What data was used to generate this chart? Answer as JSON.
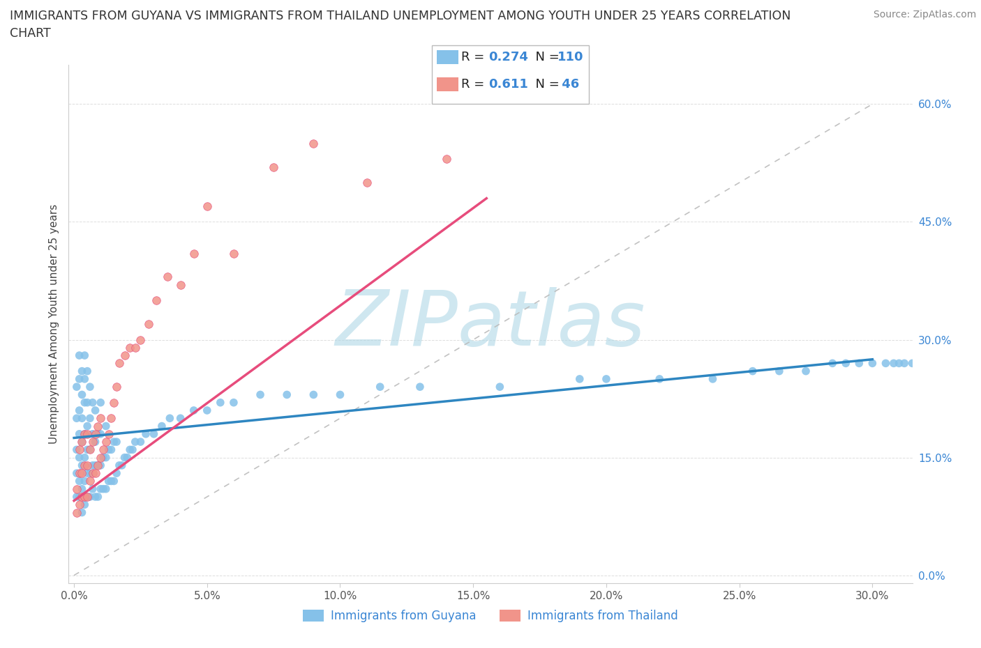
{
  "title_line1": "IMMIGRANTS FROM GUYANA VS IMMIGRANTS FROM THAILAND UNEMPLOYMENT AMONG YOUTH UNDER 25 YEARS CORRELATION",
  "title_line2": "CHART",
  "source": "Source: ZipAtlas.com",
  "ylabel": "Unemployment Among Youth under 25 years",
  "xlim": [
    -0.002,
    0.315
  ],
  "ylim": [
    -0.01,
    0.65
  ],
  "xticks": [
    0.0,
    0.05,
    0.1,
    0.15,
    0.2,
    0.25,
    0.3
  ],
  "xtick_labels": [
    "0.0%",
    "5.0%",
    "10.0%",
    "15.0%",
    "20.0%",
    "25.0%",
    "30.0%"
  ],
  "yticks": [
    0.0,
    0.15,
    0.3,
    0.45,
    0.6
  ],
  "ytick_labels": [
    "0.0%",
    "15.0%",
    "30.0%",
    "45.0%",
    "60.0%"
  ],
  "R_guyana": 0.274,
  "N_guyana": 110,
  "R_thailand": 0.611,
  "N_thailand": 46,
  "color_guyana": "#85C1E9",
  "color_thailand": "#F1948A",
  "color_guyana_line": "#2E86C1",
  "color_thailand_line": "#E74C7C",
  "color_diag": "#BBBBBB",
  "watermark": "ZIPatlas",
  "watermark_color_r": 176,
  "watermark_color_g": 216,
  "watermark_color_b": 230,
  "guyana_x": [
    0.001,
    0.001,
    0.001,
    0.001,
    0.001,
    0.002,
    0.002,
    0.002,
    0.002,
    0.002,
    0.002,
    0.002,
    0.003,
    0.003,
    0.003,
    0.003,
    0.003,
    0.003,
    0.003,
    0.004,
    0.004,
    0.004,
    0.004,
    0.004,
    0.004,
    0.004,
    0.005,
    0.005,
    0.005,
    0.005,
    0.005,
    0.005,
    0.006,
    0.006,
    0.006,
    0.006,
    0.006,
    0.007,
    0.007,
    0.007,
    0.007,
    0.008,
    0.008,
    0.008,
    0.008,
    0.009,
    0.009,
    0.009,
    0.01,
    0.01,
    0.01,
    0.01,
    0.011,
    0.011,
    0.012,
    0.012,
    0.012,
    0.013,
    0.013,
    0.014,
    0.014,
    0.015,
    0.015,
    0.016,
    0.016,
    0.017,
    0.018,
    0.019,
    0.02,
    0.021,
    0.022,
    0.023,
    0.025,
    0.027,
    0.03,
    0.033,
    0.036,
    0.04,
    0.045,
    0.05,
    0.055,
    0.06,
    0.07,
    0.08,
    0.09,
    0.1,
    0.115,
    0.13,
    0.16,
    0.19,
    0.2,
    0.22,
    0.24,
    0.255,
    0.265,
    0.275,
    0.285,
    0.29,
    0.295,
    0.3,
    0.305,
    0.308,
    0.31,
    0.312,
    0.315,
    0.318,
    0.32,
    0.322,
    0.325,
    0.328
  ],
  "guyana_y": [
    0.1,
    0.13,
    0.16,
    0.2,
    0.24,
    0.1,
    0.12,
    0.15,
    0.18,
    0.21,
    0.25,
    0.28,
    0.08,
    0.11,
    0.14,
    0.17,
    0.2,
    0.23,
    0.26,
    0.09,
    0.12,
    0.15,
    0.18,
    0.22,
    0.25,
    0.28,
    0.1,
    0.13,
    0.16,
    0.19,
    0.22,
    0.26,
    0.1,
    0.13,
    0.16,
    0.2,
    0.24,
    0.11,
    0.14,
    0.18,
    0.22,
    0.1,
    0.14,
    0.17,
    0.21,
    0.1,
    0.14,
    0.18,
    0.11,
    0.14,
    0.18,
    0.22,
    0.11,
    0.15,
    0.11,
    0.15,
    0.19,
    0.12,
    0.16,
    0.12,
    0.16,
    0.12,
    0.17,
    0.13,
    0.17,
    0.14,
    0.14,
    0.15,
    0.15,
    0.16,
    0.16,
    0.17,
    0.17,
    0.18,
    0.18,
    0.19,
    0.2,
    0.2,
    0.21,
    0.21,
    0.22,
    0.22,
    0.23,
    0.23,
    0.23,
    0.23,
    0.24,
    0.24,
    0.24,
    0.25,
    0.25,
    0.25,
    0.25,
    0.26,
    0.26,
    0.26,
    0.27,
    0.27,
    0.27,
    0.27,
    0.27,
    0.27,
    0.27,
    0.27,
    0.27,
    0.27,
    0.27,
    0.27,
    0.27,
    0.27
  ],
  "thailand_x": [
    0.001,
    0.001,
    0.002,
    0.002,
    0.002,
    0.003,
    0.003,
    0.003,
    0.004,
    0.004,
    0.004,
    0.005,
    0.005,
    0.005,
    0.006,
    0.006,
    0.007,
    0.007,
    0.008,
    0.008,
    0.009,
    0.009,
    0.01,
    0.01,
    0.011,
    0.012,
    0.013,
    0.014,
    0.015,
    0.016,
    0.017,
    0.019,
    0.021,
    0.023,
    0.025,
    0.028,
    0.031,
    0.035,
    0.04,
    0.045,
    0.05,
    0.06,
    0.075,
    0.09,
    0.11,
    0.14
  ],
  "thailand_y": [
    0.08,
    0.11,
    0.09,
    0.13,
    0.16,
    0.1,
    0.13,
    0.17,
    0.1,
    0.14,
    0.18,
    0.1,
    0.14,
    0.18,
    0.12,
    0.16,
    0.13,
    0.17,
    0.13,
    0.18,
    0.14,
    0.19,
    0.15,
    0.2,
    0.16,
    0.17,
    0.18,
    0.2,
    0.22,
    0.24,
    0.27,
    0.28,
    0.29,
    0.29,
    0.3,
    0.32,
    0.35,
    0.38,
    0.37,
    0.41,
    0.47,
    0.41,
    0.52,
    0.55,
    0.5,
    0.53
  ],
  "guyana_line_x": [
    0.0,
    0.3
  ],
  "guyana_line_y": [
    0.175,
    0.275
  ],
  "thailand_line_x": [
    0.0,
    0.155
  ],
  "thailand_line_y": [
    0.095,
    0.48
  ]
}
